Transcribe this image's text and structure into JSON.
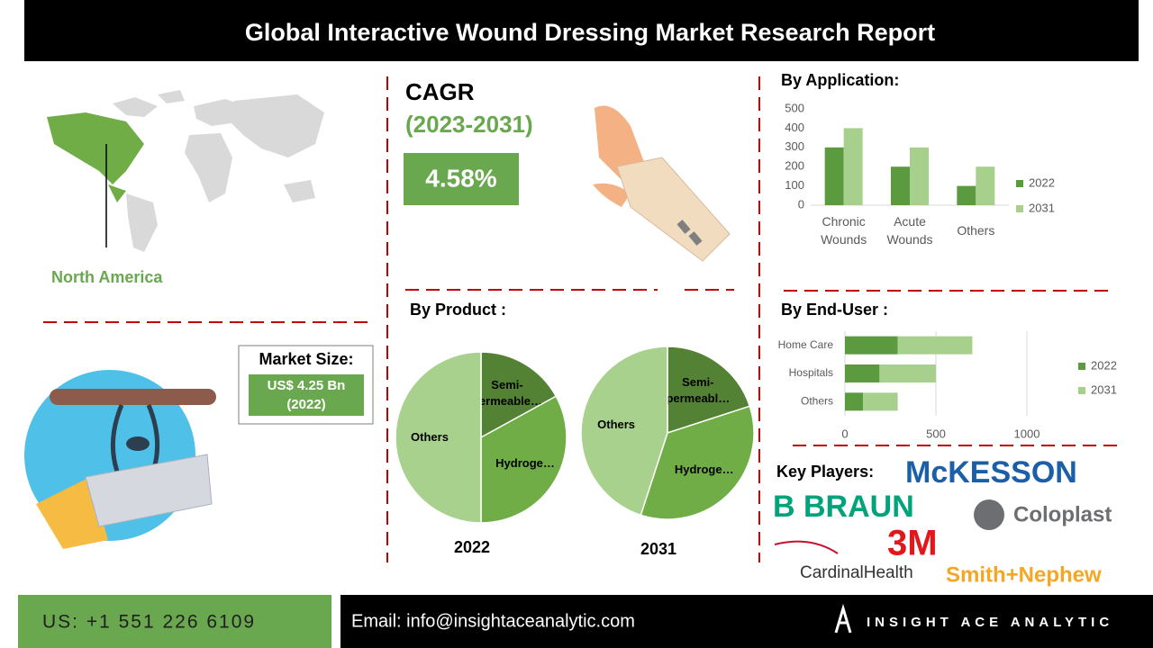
{
  "title": "Global Interactive Wound Dressing Market Research Report",
  "region": {
    "label": "North America"
  },
  "cagr": {
    "label": "CAGR",
    "period": "(2023-2031)",
    "value": "4.58%"
  },
  "market_size": {
    "label": "Market Size:",
    "value": "US$ 4.25 Bn",
    "year": "(2022)"
  },
  "key_players": {
    "label": "Key Players:",
    "logos": [
      "McKESSON",
      "B BRAUN",
      "Coloplast",
      "3M",
      "CardinalHealth",
      "Smith+Nephew"
    ]
  },
  "footer": {
    "phone": "US: +1 551 226 6109",
    "email": "Email: info@insightaceanalytic.com",
    "brand": "INSIGHT ACE ANALYTIC"
  },
  "chart_data": [
    {
      "type": "bar",
      "title": "By Application:",
      "categories": [
        "Chronic Wounds",
        "Acute Wounds",
        "Others"
      ],
      "series": [
        {
          "name": "2022",
          "color": "#5b9a3f",
          "values": [
            300,
            200,
            100
          ]
        },
        {
          "name": "2031",
          "color": "#a8d08d",
          "values": [
            400,
            300,
            200
          ]
        }
      ],
      "ylim": [
        0,
        500
      ],
      "yticks": [
        0,
        100,
        200,
        300,
        400,
        500
      ],
      "grid": false
    },
    {
      "type": "pie",
      "title": "By Product :",
      "label": "2022",
      "categories": [
        "Semi-permeable…",
        "Hydroge…",
        "Others"
      ],
      "values": [
        17,
        33,
        50
      ],
      "colors": [
        "#548235",
        "#70ad47",
        "#a9d18e"
      ]
    },
    {
      "type": "pie",
      "label": "2031",
      "categories": [
        "Semi-permeabl…",
        "Hydroge…",
        "Others"
      ],
      "values": [
        20,
        35,
        45
      ],
      "colors": [
        "#548235",
        "#70ad47",
        "#a9d18e"
      ]
    },
    {
      "type": "hbar",
      "title": "By End-User :",
      "stacked": true,
      "categories": [
        "Home Care",
        "Hospitals",
        "Others"
      ],
      "series": [
        {
          "name": "2022",
          "color": "#5b9a3f",
          "values": [
            290,
            190,
            100
          ]
        },
        {
          "name": "2031",
          "color": "#a8d08d",
          "values": [
            410,
            310,
            190
          ]
        }
      ],
      "xlim": [
        0,
        1000
      ],
      "xticks": [
        0,
        500,
        1000
      ],
      "grid": true
    }
  ]
}
